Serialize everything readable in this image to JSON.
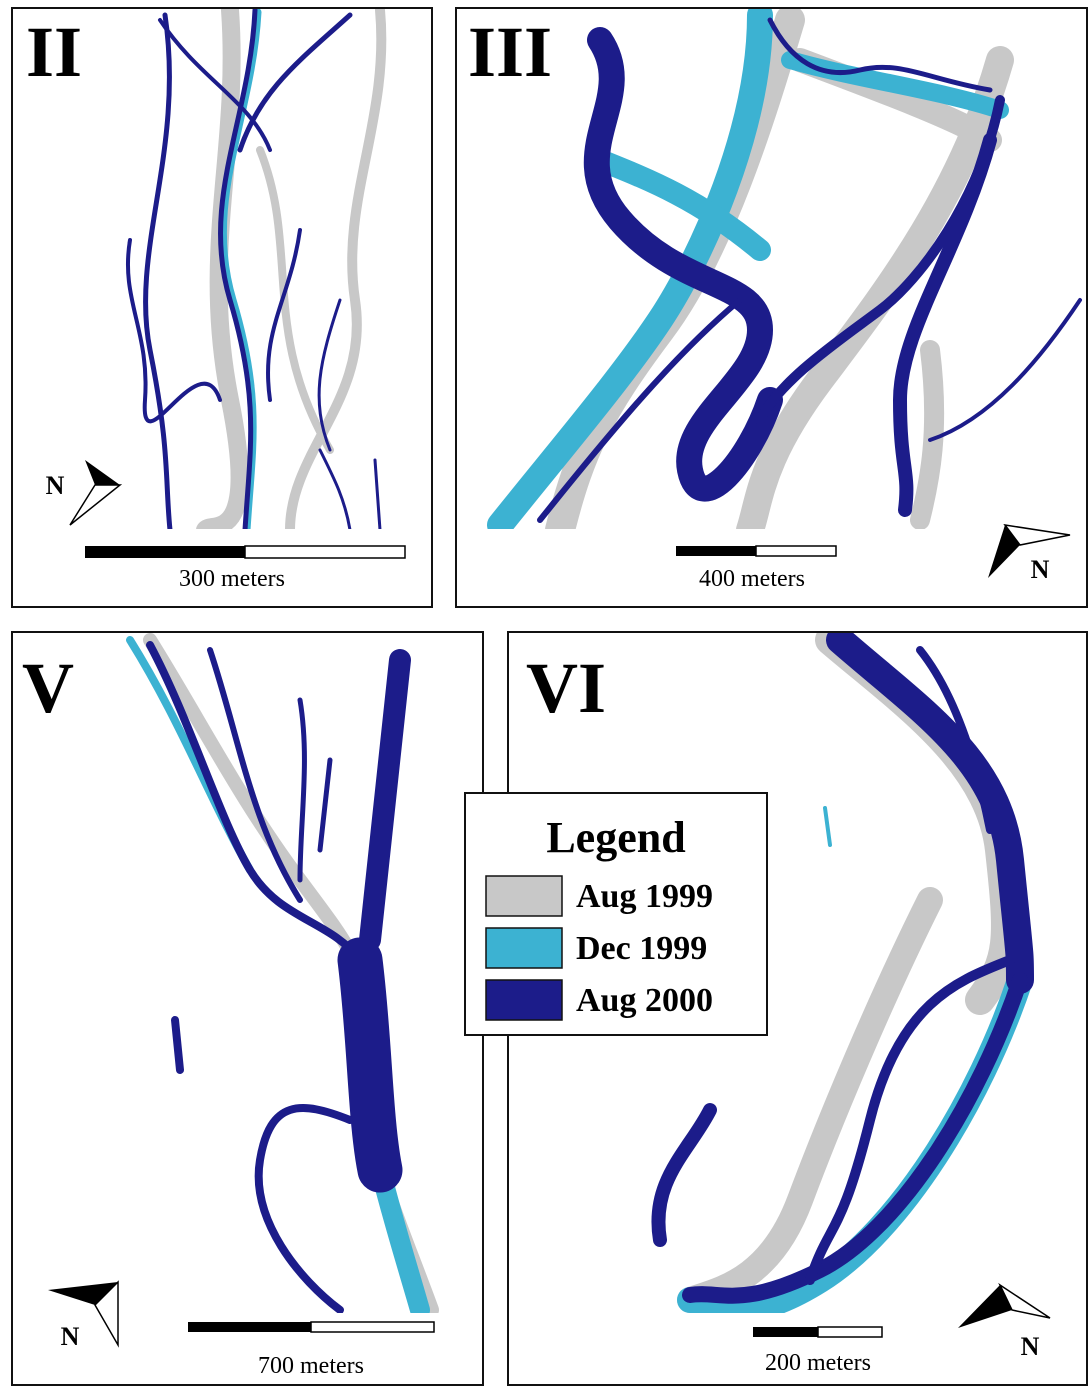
{
  "panels": [
    {
      "label": "II",
      "scale": "300 meters",
      "north": "N"
    },
    {
      "label": "III",
      "scale": "400 meters",
      "north": "N"
    },
    {
      "label": "V",
      "scale": "700 meters",
      "north": "N"
    },
    {
      "label": "VI",
      "scale": "200 meters",
      "north": "N"
    }
  ],
  "legend": {
    "title": "Legend",
    "items": [
      {
        "label": "Aug 1999",
        "color": "#c8c8c8"
      },
      {
        "label": "Dec 1999",
        "color": "#3cb2d2"
      },
      {
        "label": "Aug 2000",
        "color": "#1c1c8a"
      }
    ]
  }
}
